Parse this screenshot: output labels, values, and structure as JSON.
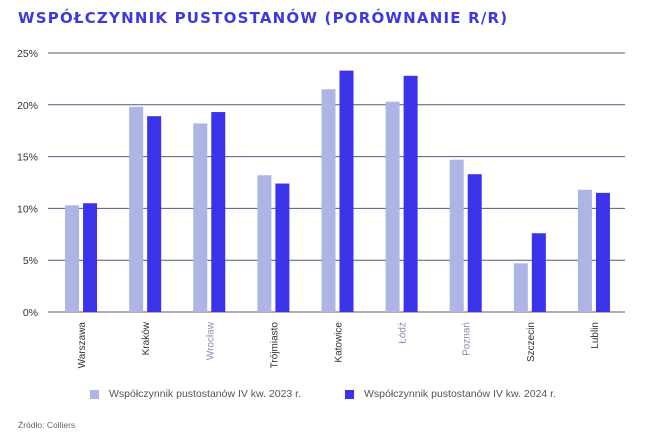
{
  "title": "WSPÓŁCZYNNIK PUSTOSTANÓW (PORÓWNANIE R/R)",
  "source": "Źródło: Colliers",
  "colors": {
    "title": "#3f38e0",
    "series_2023": "#aeb5e6",
    "series_2024": "#3a33ea",
    "grid": "#55597a",
    "tick_text": "#333333",
    "category_text_default": "#333333",
    "category_text_muted": "#8a8fb8"
  },
  "legend": [
    {
      "label": "Współczynnik pustostanów IV kw. 2023 r.",
      "color": "#aeb5e6"
    },
    {
      "label": "Współczynnik pustostanów IV kw. 2024 r.",
      "color": "#3a33ea"
    }
  ],
  "chart_data": {
    "type": "bar",
    "categories": [
      "Warszawa",
      "Kraków",
      "Wrocław",
      "Trójmiasto",
      "Katowice",
      "Łódź",
      "Poznań",
      "Szczecin",
      "Lublin"
    ],
    "muted_categories": [
      "Wrocław",
      "Łódź",
      "Poznań"
    ],
    "series": [
      {
        "name": "Współczynnik pustostanów IV kw. 2023 r.",
        "values": [
          10.3,
          19.8,
          18.2,
          13.2,
          21.5,
          20.3,
          14.7,
          4.7,
          11.8
        ]
      },
      {
        "name": "Współczynnik pustostanów IV kw. 2024 r.",
        "values": [
          10.5,
          18.9,
          19.3,
          12.4,
          23.3,
          22.8,
          13.3,
          7.6,
          11.5
        ]
      }
    ],
    "yticks": [
      "0%",
      "5%",
      "10%",
      "15%",
      "20%",
      "25%"
    ],
    "ylim": [
      0,
      25
    ],
    "grid": true,
    "legend_position": "bottom"
  }
}
